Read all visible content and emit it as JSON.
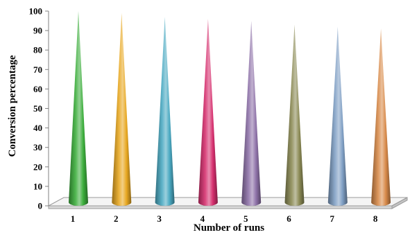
{
  "chart_data": {
    "type": "bar",
    "shape": "cone",
    "categories": [
      "1",
      "2",
      "3",
      "4",
      "5",
      "6",
      "7",
      "8"
    ],
    "values": [
      100,
      99,
      97,
      96,
      95,
      93,
      92,
      91
    ],
    "xlabel": "Number of runs",
    "ylabel": "Conversion percentage",
    "ylim": [
      0,
      100
    ],
    "yticks": [
      "0",
      "10",
      "20",
      "30",
      "40",
      "50",
      "60",
      "70",
      "80",
      "90",
      "100"
    ],
    "grid": false,
    "legend": "none",
    "colors": [
      "#3cae3c",
      "#e8a822",
      "#4aa9c2",
      "#d62f6e",
      "#8e72a8",
      "#8b8a55",
      "#7f9fc4",
      "#d88a4a"
    ]
  }
}
